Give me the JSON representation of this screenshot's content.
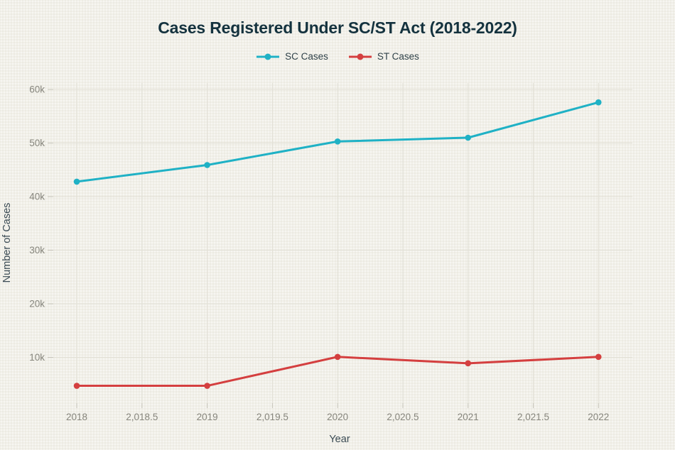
{
  "page": {
    "background": "#f1f0e9"
  },
  "header": {
    "title": "Cases Registered Under SC/ST Act (2018-2022)"
  },
  "legend": {
    "items": [
      {
        "label": "SC Cases",
        "color": "#1fb1c5"
      },
      {
        "label": "ST Cases",
        "color": "#d43f3f"
      }
    ]
  },
  "chart_data": {
    "type": "line",
    "title": "Cases Registered Under SC/ST Act (2018-2022)",
    "xlabel": "Year",
    "ylabel": "Number of Cases",
    "x": [
      2018,
      2019,
      2020,
      2021,
      2022
    ],
    "series": [
      {
        "name": "SC Cases",
        "color": "#1fb1c5",
        "values": [
          42800,
          45900,
          50300,
          51000,
          57600
        ]
      },
      {
        "name": "ST Cases",
        "color": "#d43f3f",
        "values": [
          4700,
          4700,
          10100,
          8900,
          10100
        ]
      }
    ],
    "x_ticks": [
      {
        "v": 2018,
        "label": "2018"
      },
      {
        "v": 2018.5,
        "label": "2,018.5"
      },
      {
        "v": 2019,
        "label": "2019"
      },
      {
        "v": 2019.5,
        "label": "2,019.5"
      },
      {
        "v": 2020,
        "label": "2020"
      },
      {
        "v": 2020.5,
        "label": "2,020.5"
      },
      {
        "v": 2021,
        "label": "2021"
      },
      {
        "v": 2021.5,
        "label": "2,021.5"
      },
      {
        "v": 2022,
        "label": "2022"
      }
    ],
    "y_ticks": [
      {
        "v": 10000,
        "label": "10k"
      },
      {
        "v": 20000,
        "label": "20k"
      },
      {
        "v": 30000,
        "label": "30k"
      },
      {
        "v": 40000,
        "label": "40k"
      },
      {
        "v": 50000,
        "label": "50k"
      },
      {
        "v": 60000,
        "label": "60k"
      }
    ],
    "xlim": [
      2017.82,
      2022.26
    ],
    "ylim": [
      1460,
      61200
    ],
    "grid": true,
    "legend_position": "top-center",
    "colors": {
      "gridline": "#e2e0d6",
      "tick": "#c6c4ba",
      "tick_label": "#86857c",
      "axis_title": "#3b4b54",
      "title": "#14323e",
      "legend_text": "#2f4148"
    }
  }
}
